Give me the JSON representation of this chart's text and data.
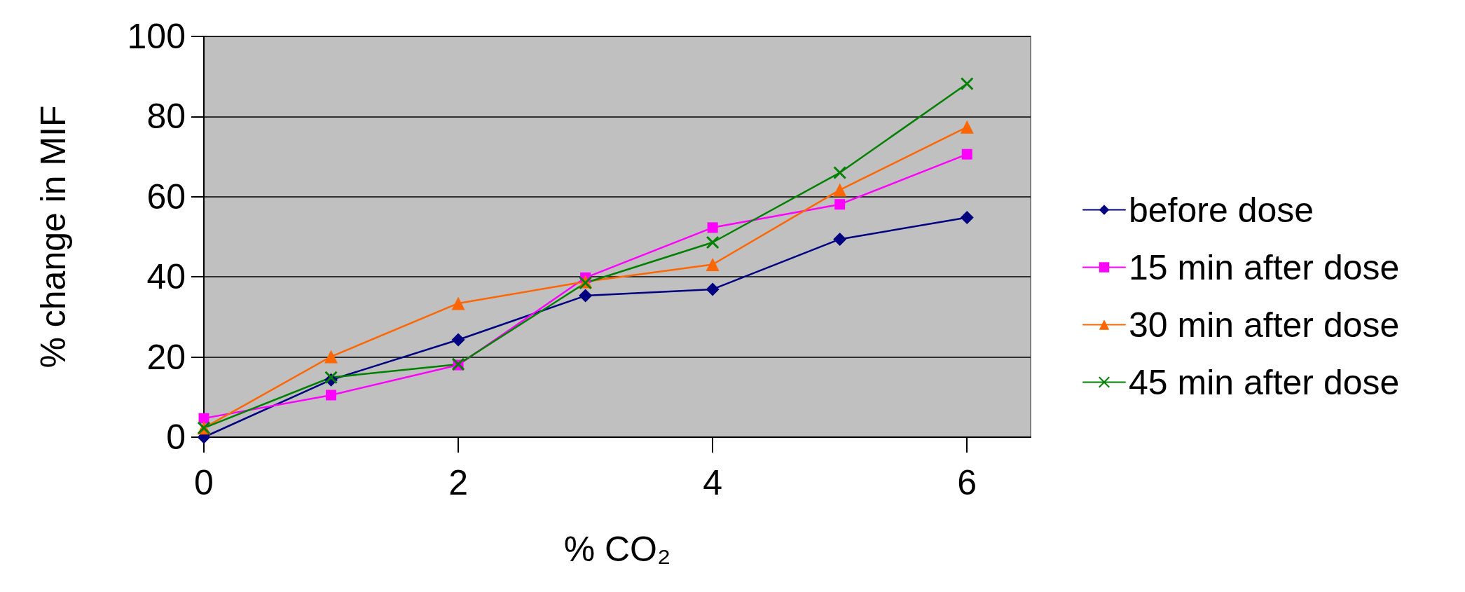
{
  "chart_data": {
    "type": "line",
    "xlabel": "% CO₂",
    "ylabel": "% change in MIF",
    "x": [
      0,
      1,
      2,
      3,
      4,
      5,
      6
    ],
    "series": [
      {
        "name": "before dose",
        "color": "#000080",
        "marker": "diamond",
        "values": [
          0,
          14.3,
          24.3,
          35.3,
          36.9,
          49.4,
          54.8
        ]
      },
      {
        "name": "15 min after dose",
        "color": "#ff00ff",
        "marker": "square",
        "values": [
          4.7,
          10.5,
          18.0,
          39.8,
          52.3,
          58.1,
          70.6
        ]
      },
      {
        "name": "30 min after dose",
        "color": "#ff6600",
        "marker": "triangle",
        "values": [
          2.3,
          20.1,
          33.4,
          38.8,
          43.1,
          61.7,
          77.4
        ]
      },
      {
        "name": "45 min after dose",
        "color": "#008000",
        "marker": "cross",
        "values": [
          2.3,
          14.9,
          18.2,
          38.5,
          48.6,
          66.0,
          88.2
        ]
      }
    ],
    "xlim": [
      0,
      6.5
    ],
    "xticks": [
      0,
      2,
      4,
      6
    ],
    "ylim": [
      0,
      100
    ],
    "yticks": [
      0,
      20,
      40,
      60,
      80,
      100
    ],
    "grid": "y",
    "legend": "right",
    "line_style": "solid"
  }
}
